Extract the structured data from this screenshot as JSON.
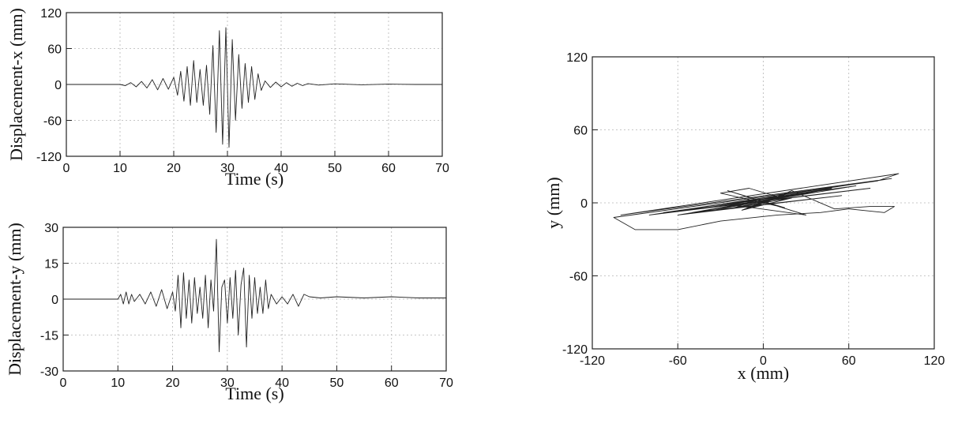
{
  "chart_data": [
    {
      "type": "line",
      "xlabel": "Time (s)",
      "ylabel": "Displacement-x (mm)",
      "xlim": [
        0,
        70
      ],
      "ylim": [
        -120,
        120
      ],
      "xticks": [
        0,
        10,
        20,
        30,
        40,
        50,
        60,
        70
      ],
      "yticks": [
        120,
        60,
        0,
        -60,
        -120
      ],
      "grid": true,
      "series": [
        {
          "x": [
            0,
            10,
            11,
            12,
            13,
            14,
            15,
            16,
            17,
            18,
            19,
            20,
            20.7,
            21.3,
            21.9,
            22.5,
            23.1,
            23.7,
            24.3,
            24.9,
            25.5,
            26.1,
            26.7,
            27.3,
            27.9,
            28.5,
            29.1,
            29.7,
            30.3,
            30.9,
            31.5,
            32.1,
            32.7,
            33.3,
            33.9,
            34.5,
            35.1,
            35.7,
            36.3,
            37,
            38,
            39,
            40,
            41,
            42,
            43,
            44,
            45,
            47,
            50,
            55,
            60,
            65,
            70
          ],
          "y": [
            0,
            0,
            -2,
            3,
            -4,
            5,
            -6,
            8,
            -9,
            10,
            -8,
            12,
            -18,
            22,
            -28,
            30,
            -35,
            40,
            -30,
            25,
            -35,
            32,
            -50,
            65,
            -80,
            90,
            -100,
            95,
            -105,
            75,
            -60,
            50,
            -40,
            35,
            -30,
            30,
            -25,
            18,
            -10,
            6,
            -5,
            4,
            -4,
            3,
            -3,
            2,
            -2,
            1.5,
            -1,
            1,
            -0.5,
            0.5,
            0,
            0
          ]
        }
      ]
    },
    {
      "type": "line",
      "xlabel": "Time (s)",
      "ylabel": "Displacement-y (mm)",
      "xlim": [
        0,
        70
      ],
      "ylim": [
        -30,
        30
      ],
      "xticks": [
        0,
        10,
        20,
        30,
        40,
        50,
        60,
        70
      ],
      "yticks": [
        30,
        15,
        0,
        -15,
        -30
      ],
      "grid": true,
      "series": [
        {
          "x": [
            0,
            10,
            10.5,
            11,
            11.5,
            12,
            12.5,
            13,
            14,
            15,
            16,
            17,
            18,
            19,
            20,
            20.5,
            21,
            21.5,
            22,
            22.5,
            23,
            23.5,
            24,
            24.5,
            25,
            25.5,
            26,
            26.5,
            27,
            27.5,
            28,
            28.5,
            29,
            29.5,
            30,
            30.5,
            31,
            31.5,
            32,
            32.5,
            33,
            33.5,
            34,
            34.5,
            35,
            35.5,
            36,
            36.5,
            37,
            37.5,
            38,
            39,
            40,
            41,
            42,
            43,
            44,
            45,
            47,
            50,
            55,
            60,
            65,
            70
          ],
          "y": [
            0,
            0,
            2,
            -2,
            3,
            -2,
            2,
            -1,
            2,
            -2,
            3,
            -3,
            4,
            -4,
            3,
            -5,
            10,
            -12,
            11,
            -8,
            8,
            -10,
            9,
            -6,
            5,
            -8,
            10,
            -12,
            8,
            -5,
            25,
            -22,
            5,
            8,
            -10,
            9,
            -8,
            12,
            -15,
            6,
            13,
            -20,
            10,
            -8,
            9,
            -6,
            5,
            -6,
            8,
            -4,
            2,
            -2,
            1,
            -2,
            2,
            -3,
            2,
            1,
            0.5,
            1,
            0.5,
            1,
            0.5,
            0.5
          ]
        }
      ]
    },
    {
      "type": "line",
      "xlabel": "x (mm)",
      "ylabel": "y (mm)",
      "xlim": [
        -120,
        120
      ],
      "ylim": [
        -120,
        120
      ],
      "xticks": [
        -120,
        -60,
        0,
        60,
        120
      ],
      "yticks": [
        120,
        60,
        0,
        -60,
        -120
      ],
      "grid": true,
      "series": [
        {
          "x": [
            0,
            3,
            -5,
            8,
            -10,
            12,
            -15,
            20,
            -25,
            30,
            -35,
            40,
            -45,
            48,
            -50,
            55,
            -60,
            65,
            -70,
            75,
            -80,
            90,
            -100,
            95,
            80,
            -105,
            -90,
            -60,
            -30,
            10,
            40,
            60,
            85,
            92,
            75,
            50,
            30,
            20,
            10,
            -10,
            -30,
            15,
            -25,
            30,
            -20,
            18,
            -15,
            10,
            -8,
            6,
            -4,
            2,
            0
          ],
          "y": [
            0,
            2,
            -2,
            3,
            -4,
            5,
            -6,
            4,
            -5,
            8,
            -6,
            10,
            -5,
            12,
            -8,
            6,
            -10,
            14,
            -8,
            12,
            -10,
            20,
            -10,
            24,
            18,
            -12,
            -22,
            -22,
            -15,
            -10,
            -8,
            -5,
            -8,
            -3,
            -3,
            -5,
            5,
            10,
            5,
            12,
            8,
            -4,
            10,
            -10,
            -2,
            8,
            -6,
            6,
            -4,
            3,
            -2,
            1,
            0
          ]
        }
      ]
    }
  ]
}
